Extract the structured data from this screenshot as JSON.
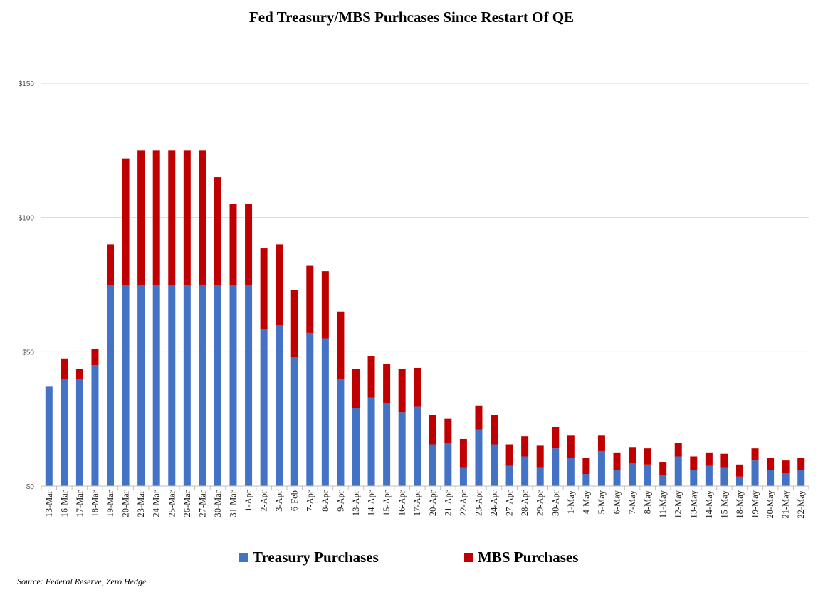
{
  "chart_data": {
    "type": "bar",
    "stacked": true,
    "title": "Fed Treasury/MBS Purhcases Since Restart Of QE",
    "ylim": [
      0,
      150
    ],
    "yticks": [
      0,
      50,
      100,
      150
    ],
    "ytick_labels": [
      "$0",
      "$50",
      "$100",
      "$150"
    ],
    "grid": true,
    "legend_position": "bottom",
    "categories": [
      "13-Mar",
      "16-Mar",
      "17-Mar",
      "18-Mar",
      "19-Mar",
      "20-Mar",
      "23-Mar",
      "24-Mar",
      "25-Mar",
      "26-Mar",
      "27-Mar",
      "30-Mar",
      "31-Mar",
      "1-Apr",
      "2-Apr",
      "3-Apr",
      "6-Feb",
      "7-Apr",
      "8-Apr",
      "9-Apr",
      "13-Apr",
      "14-Apr",
      "15-Apr",
      "16-Apr",
      "17-Apr",
      "20-Apr",
      "21-Apr",
      "22-Apr",
      "23-Apr",
      "24-Apr",
      "27-Apr",
      "28-Apr",
      "29-Apr",
      "30-Apr",
      "1-May",
      "4-May",
      "5-May",
      "6-May",
      "7-May",
      "8-May",
      "11-May",
      "12-May",
      "13-May",
      "14-May",
      "15-May",
      "18-May",
      "19-May",
      "20-May",
      "21-May",
      "22-May"
    ],
    "series": [
      {
        "name": "Treasury Purchases",
        "color": "#4472C4",
        "values": [
          37,
          40,
          40,
          45,
          75,
          75,
          75,
          75,
          75,
          75,
          75,
          75,
          75,
          75,
          58.5,
          60,
          48,
          57,
          55,
          40,
          29,
          33,
          31,
          27.5,
          29.5,
          15.5,
          16,
          7,
          21,
          15.5,
          7.5,
          11,
          7,
          14,
          10.5,
          4.5,
          13,
          6,
          8.5,
          8,
          4,
          11,
          6,
          7.5,
          7,
          3.5,
          9.5,
          6,
          5,
          6
        ]
      },
      {
        "name": "MBS Purchases",
        "color": "#C00000",
        "values": [
          0,
          7.5,
          3.5,
          6,
          15,
          47,
          50,
          50,
          50,
          50,
          50,
          40,
          30,
          30,
          30,
          30,
          25,
          25,
          25,
          25,
          14.5,
          15.5,
          14.5,
          16,
          14.5,
          11,
          9,
          10.5,
          9,
          11,
          8,
          7.5,
          8,
          8,
          8.5,
          6,
          6,
          6.5,
          6,
          6,
          5,
          5,
          5,
          5,
          5,
          4.5,
          4.5,
          4.5,
          4.5,
          4.5
        ]
      }
    ]
  },
  "legend": {
    "treasury_label": "Treasury Purchases",
    "mbs_label": "MBS Purchases"
  },
  "source": "Source: Federal Reserve, Zero Hedge"
}
